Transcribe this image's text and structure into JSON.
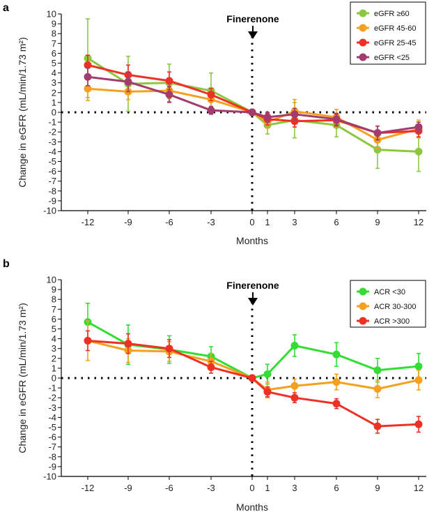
{
  "chart_data": [
    {
      "type": "line",
      "panel": "a",
      "title": "",
      "xlabel": "Months",
      "ylabel": "Change in eGFR (mL/min/1.73 m²)",
      "annotation": "Finerenone",
      "x": [
        -12,
        -9,
        -6,
        -3,
        0,
        1,
        3,
        6,
        9,
        12
      ],
      "x_tick_labels": [
        "-12",
        "-9",
        "-6",
        "-3",
        "0",
        "1",
        "3",
        "6",
        "9",
        "12"
      ],
      "ylim": [
        -10,
        10
      ],
      "y_tick_labels": [
        "10",
        "9",
        "8",
        "7",
        "6",
        "5",
        "4",
        "3",
        "2",
        "1",
        "0",
        "-1",
        "-2",
        "-3",
        "-4",
        "-5",
        "-6",
        "-7",
        "-8",
        "-9",
        "-10"
      ],
      "reference_line_y": 0,
      "reference_line_x": 0,
      "legend_position": "top-right",
      "series": [
        {
          "name": "eGFR ≥60",
          "color": "#8dc63f",
          "values": [
            5.5,
            2.9,
            3.0,
            2.2,
            0.0,
            -1.3,
            -0.8,
            -1.3,
            -3.8,
            -4.0
          ],
          "err": [
            4.0,
            2.8,
            1.9,
            1.8,
            0.2,
            0.9,
            1.8,
            1.2,
            1.9,
            2.0
          ]
        },
        {
          "name": "eGFR 45-60",
          "color": "#f5a01e",
          "values": [
            2.4,
            2.1,
            2.2,
            1.3,
            0.0,
            -1.0,
            0.1,
            -0.5,
            -2.8,
            -1.7
          ],
          "err": [
            1.2,
            0.8,
            0.8,
            0.8,
            0.2,
            0.6,
            1.2,
            0.8,
            0.9,
            0.9
          ]
        },
        {
          "name": "eGFR 25-45",
          "color": "#ee3124",
          "values": [
            4.8,
            3.8,
            3.2,
            1.8,
            0.0,
            -0.7,
            -0.9,
            -0.8,
            -2.1,
            -1.9
          ],
          "err": [
            1.0,
            1.0,
            0.9,
            0.6,
            0.2,
            0.6,
            0.6,
            0.6,
            0.7,
            0.6
          ]
        },
        {
          "name": "eGFR <25",
          "color": "#a43b6e",
          "values": [
            3.6,
            3.1,
            1.8,
            0.2,
            0.0,
            -0.5,
            -0.2,
            -0.7,
            -2.1,
            -1.5
          ],
          "err": [
            0.9,
            1.0,
            0.8,
            0.4,
            0.2,
            0.5,
            0.6,
            0.6,
            0.7,
            0.5
          ]
        }
      ]
    },
    {
      "type": "line",
      "panel": "b",
      "title": "",
      "xlabel": "Months",
      "ylabel": "Change in eGFR (mL/min/1.73 m²)",
      "annotation": "Finerenone",
      "x": [
        -12,
        -9,
        -6,
        -3,
        0,
        1,
        3,
        6,
        9,
        12
      ],
      "x_tick_labels": [
        "-12",
        "-9",
        "-6",
        "-3",
        "0",
        "1",
        "3",
        "6",
        "9",
        "12"
      ],
      "ylim": [
        -10,
        10
      ],
      "y_tick_labels": [
        "10",
        "9",
        "8",
        "7",
        "6",
        "5",
        "4",
        "3",
        "2",
        "1",
        "0",
        "-1",
        "-2",
        "-3",
        "-4",
        "-5",
        "-6",
        "-7",
        "-8",
        "-9",
        "-10"
      ],
      "reference_line_y": 0,
      "reference_line_x": 0,
      "legend_position": "top-right",
      "series": [
        {
          "name": "ACR <30",
          "color": "#33dd33",
          "values": [
            5.7,
            3.4,
            2.9,
            2.2,
            0.0,
            0.4,
            3.3,
            2.4,
            0.8,
            1.2
          ],
          "err": [
            1.9,
            2.0,
            1.4,
            1.0,
            0.3,
            1.0,
            1.1,
            1.2,
            1.2,
            1.3
          ]
        },
        {
          "name": "ACR 30-300",
          "color": "#f5a01e",
          "values": [
            3.8,
            2.8,
            2.7,
            1.7,
            0.0,
            -1.2,
            -0.8,
            -0.4,
            -1.1,
            -0.2
          ],
          "err": [
            2.0,
            1.2,
            1.0,
            0.8,
            0.3,
            0.8,
            0.7,
            0.8,
            0.9,
            1.0
          ]
        },
        {
          "name": "ACR >300",
          "color": "#ee3124",
          "values": [
            3.8,
            3.5,
            3.0,
            1.1,
            0.0,
            -1.4,
            -2.0,
            -2.6,
            -4.9,
            -4.7
          ],
          "err": [
            1.0,
            1.0,
            0.9,
            0.6,
            0.3,
            0.5,
            0.5,
            0.5,
            0.7,
            0.8
          ]
        }
      ]
    }
  ]
}
